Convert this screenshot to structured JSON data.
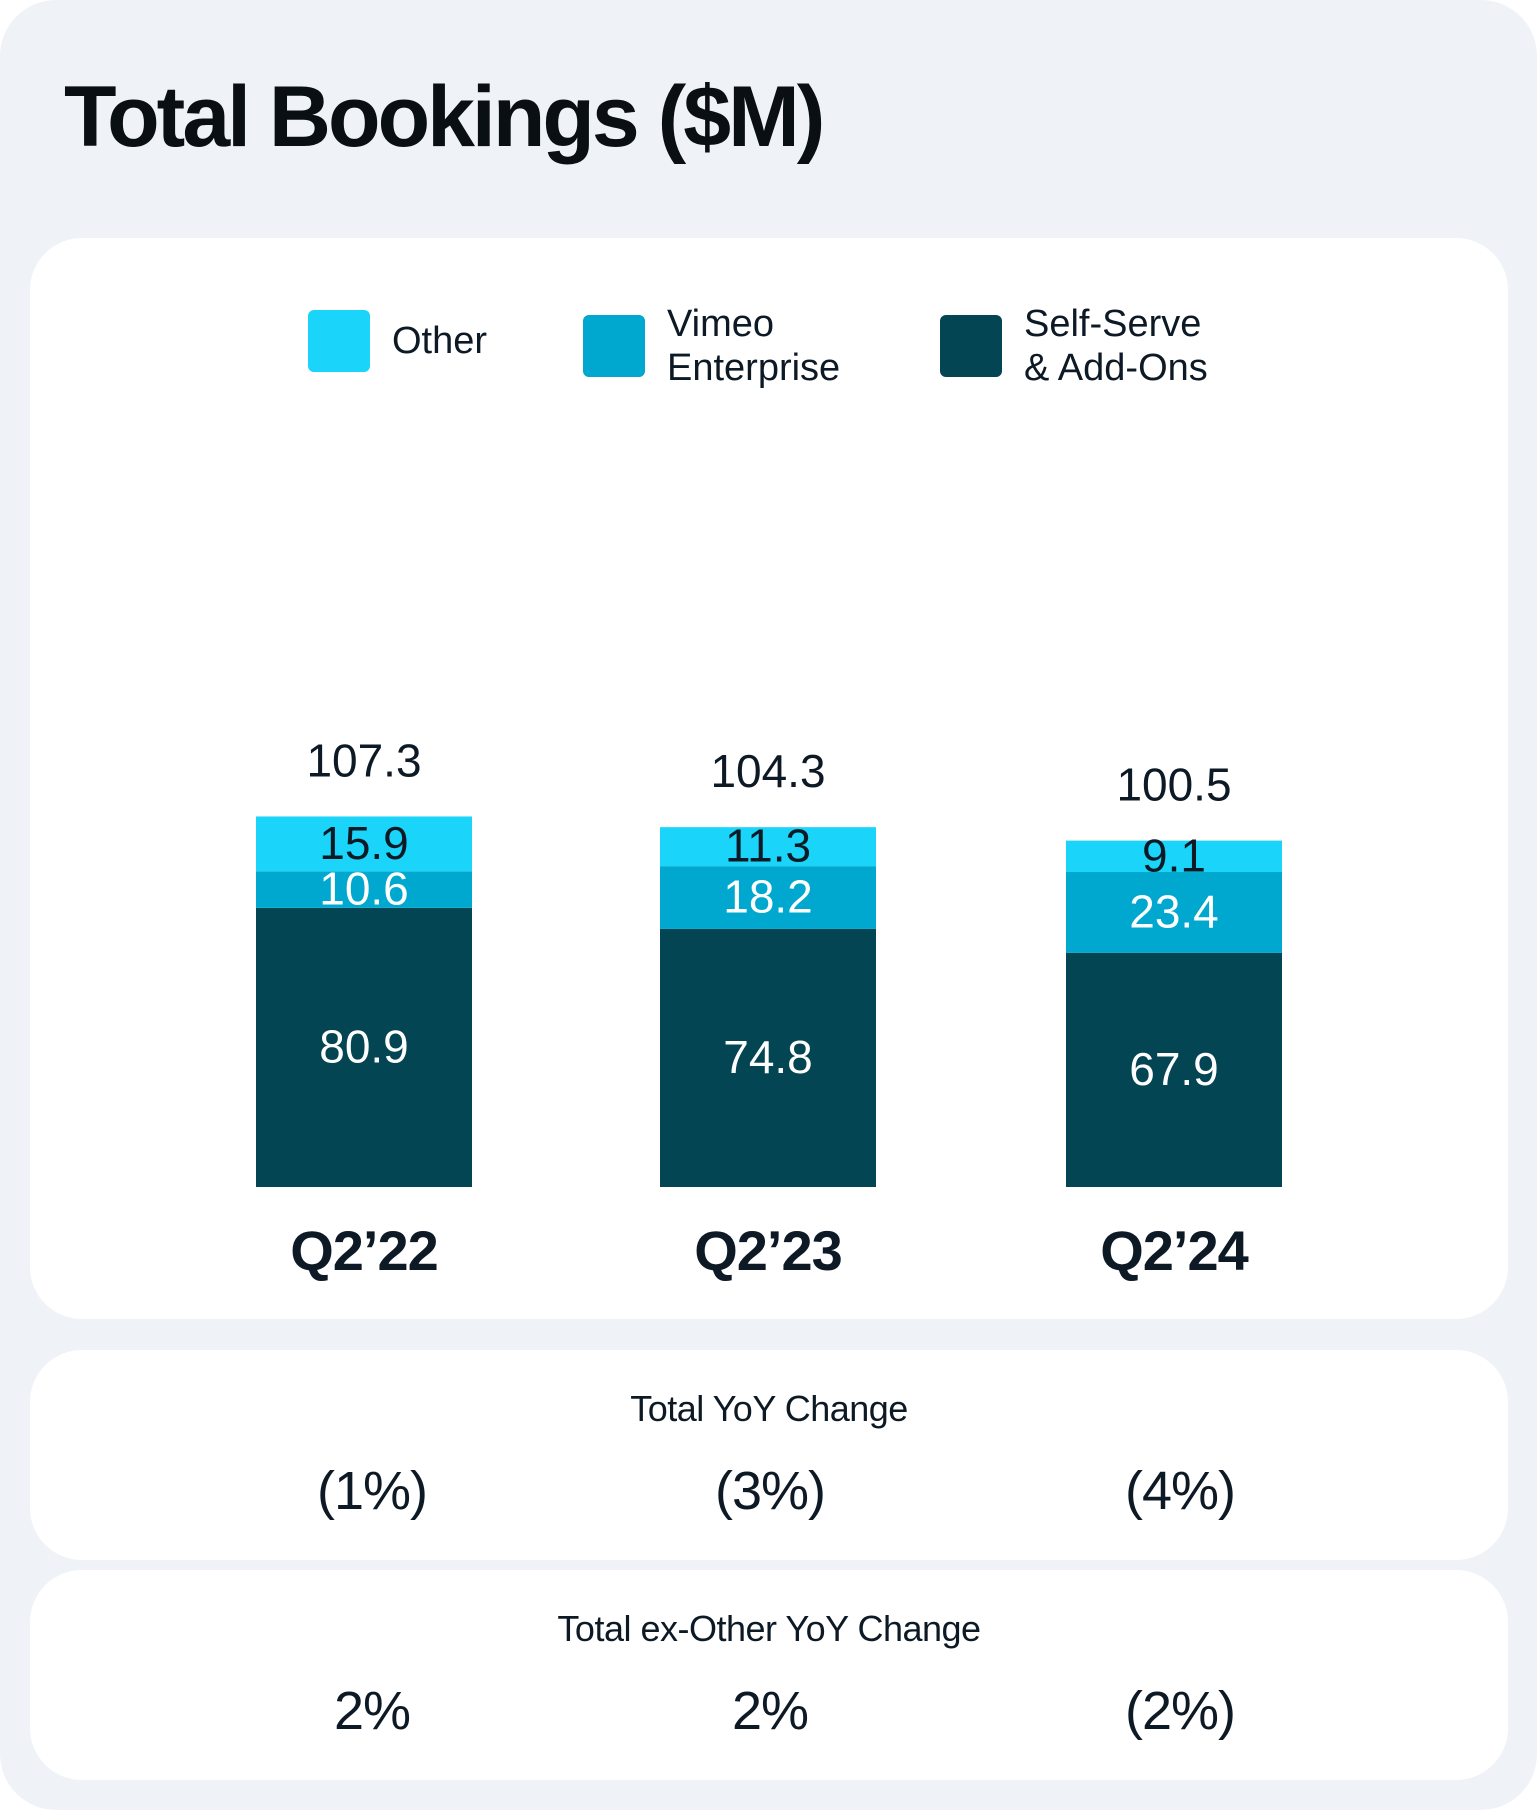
{
  "title": "Total Bookings ($M)",
  "colors": {
    "other": "#1ad4f9",
    "enterprise": "#00a8cf",
    "self_serve": "#034553",
    "background": "#eff3f8",
    "card": "#ffffff",
    "text_dark": "#0d1a26",
    "text_light": "#ffffff"
  },
  "chart_data": {
    "type": "bar",
    "stacked": true,
    "title": "Total Bookings ($M)",
    "categories": [
      "Q2’22",
      "Q2’23",
      "Q2’24"
    ],
    "series": [
      {
        "name": "Self-Serve & Add-Ons",
        "key": "self_serve",
        "values": [
          80.9,
          74.8,
          67.9
        ],
        "labels": [
          "80.9",
          "74.8",
          "67.9"
        ]
      },
      {
        "name": "Vimeo Enterprise",
        "key": "enterprise",
        "values": [
          10.6,
          18.2,
          23.4
        ],
        "labels": [
          "10.6",
          "18.2",
          "23.4"
        ]
      },
      {
        "name": "Other",
        "key": "other",
        "values": [
          15.9,
          11.3,
          9.1
        ],
        "labels": [
          "15.9",
          "11.3",
          "9.1"
        ]
      }
    ],
    "totals": [
      "107.3",
      "104.3",
      "100.5"
    ],
    "xlabel": "",
    "ylabel": "",
    "ylim": [
      0,
      110
    ],
    "grid": false,
    "legend": [
      {
        "label": "Other",
        "key": "other"
      },
      {
        "label": "Vimeo\nEnterprise",
        "key": "enterprise"
      },
      {
        "label": "Self-Serve\n& Add-Ons",
        "key": "self_serve"
      }
    ],
    "legend_position": "top"
  },
  "yoy": {
    "title": "Total YoY Change",
    "values": [
      "(1%)",
      "(3%)",
      "(4%)"
    ]
  },
  "ex_other": {
    "title": "Total ex-Other YoY Change",
    "values": [
      "2%",
      "2%",
      "(2%)"
    ]
  }
}
